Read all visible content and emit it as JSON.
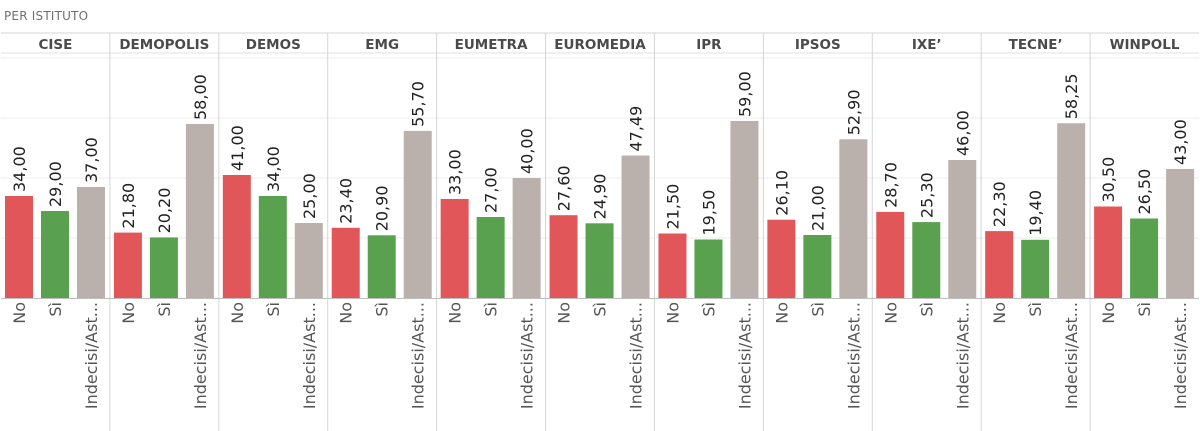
{
  "header": {
    "title": "PER ISTITUTO"
  },
  "colors": {
    "No": "#e15759",
    "Sì": "#59a14f",
    "Indecisi/Ast...": "#bab0ac"
  },
  "chart_data": {
    "type": "bar",
    "title": "PER ISTITUTO",
    "categories": [
      "No",
      "Sì",
      "Indecisi/Ast..."
    ],
    "ylim": [
      0,
      90
    ],
    "grid": true,
    "groups": [
      {
        "name": "CISE",
        "values": [
          34.0,
          29.0,
          37.0
        ],
        "labels": [
          "34,00",
          "29,00",
          "37,00"
        ]
      },
      {
        "name": "DEMOPOLIS",
        "values": [
          21.8,
          20.2,
          58.0
        ],
        "labels": [
          "21,80",
          "20,20",
          "58,00"
        ]
      },
      {
        "name": "DEMOS",
        "values": [
          41.0,
          34.0,
          25.0
        ],
        "labels": [
          "41,00",
          "34,00",
          "25,00"
        ]
      },
      {
        "name": "EMG",
        "values": [
          23.4,
          20.9,
          55.7
        ],
        "labels": [
          "23,40",
          "20,90",
          "55,70"
        ]
      },
      {
        "name": "EUMETRA",
        "values": [
          33.0,
          27.0,
          40.0
        ],
        "labels": [
          "33,00",
          "27,00",
          "40,00"
        ]
      },
      {
        "name": "EUROMEDIA",
        "values": [
          27.6,
          24.9,
          47.49
        ],
        "labels": [
          "27,60",
          "24,90",
          "47,49"
        ]
      },
      {
        "name": "IPR",
        "values": [
          21.5,
          19.5,
          59.0
        ],
        "labels": [
          "21,50",
          "19,50",
          "59,00"
        ]
      },
      {
        "name": "IPSOS",
        "values": [
          26.1,
          21.0,
          52.9
        ],
        "labels": [
          "26,10",
          "21,00",
          "52,90"
        ]
      },
      {
        "name": "IXE’",
        "values": [
          28.7,
          25.3,
          46.0
        ],
        "labels": [
          "28,70",
          "25,30",
          "46,00"
        ]
      },
      {
        "name": "TECNE’",
        "values": [
          22.3,
          19.4,
          58.25
        ],
        "labels": [
          "22,30",
          "19,40",
          "58,25"
        ]
      },
      {
        "name": "WINPOLL",
        "values": [
          30.5,
          26.5,
          43.0
        ],
        "labels": [
          "30,50",
          "26,50",
          "43,00"
        ]
      }
    ]
  }
}
